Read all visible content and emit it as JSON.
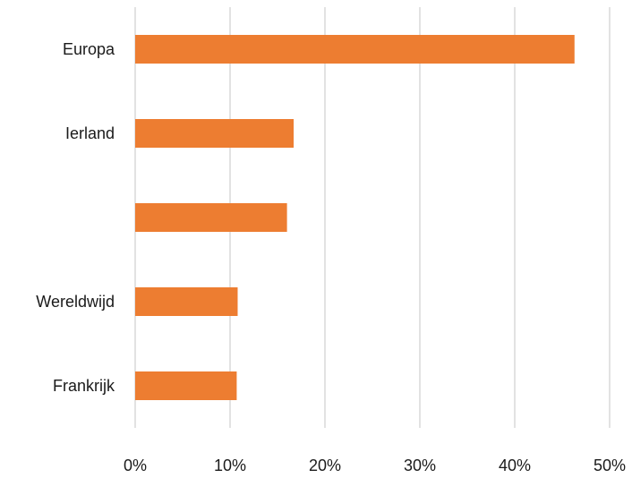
{
  "chart_data": {
    "type": "bar",
    "orientation": "horizontal",
    "categories": [
      "Europa",
      "Ierland",
      "",
      "Wereldwijd",
      "Frankrijk"
    ],
    "values": [
      46.3,
      16.7,
      16.0,
      10.8,
      10.7
    ],
    "value_unit": "%",
    "xlim": [
      0,
      50
    ],
    "xticks": [
      0,
      10,
      20,
      30,
      40,
      50
    ],
    "xtick_labels": [
      "0%",
      "10%",
      "20%",
      "30%",
      "40%",
      "50%"
    ],
    "grid": "vertical",
    "legend": "none",
    "title": "",
    "xlabel": "",
    "ylabel": "",
    "colors": {
      "bar": "#ED7D31",
      "grid": "#d9d9d9"
    }
  }
}
